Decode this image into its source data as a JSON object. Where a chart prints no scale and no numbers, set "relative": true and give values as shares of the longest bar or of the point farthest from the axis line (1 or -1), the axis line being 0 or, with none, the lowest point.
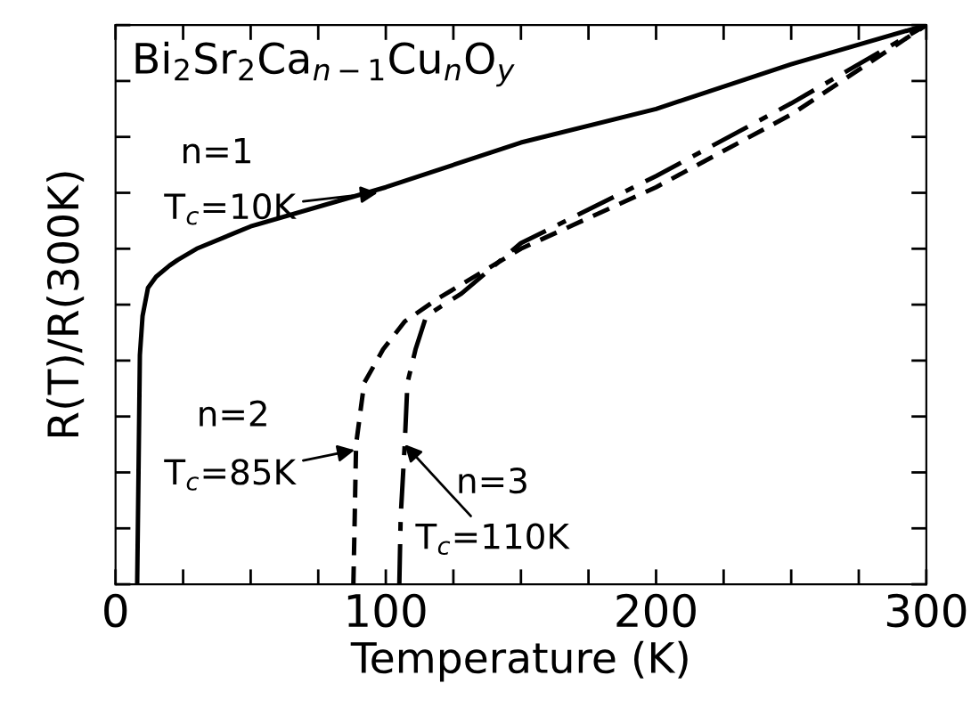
{
  "chart_data": {
    "type": "line",
    "relative": true,
    "xlabel": "Temperature (K)",
    "ylabel": "R(T)/R(300K)",
    "xlim": [
      0,
      300
    ],
    "xticks": [
      0,
      {
        "value": 25,
        "label": null
      },
      {
        "value": 50,
        "label": null
      },
      {
        "value": 75,
        "label": null
      },
      100,
      {
        "value": 125,
        "label": null
      },
      {
        "value": 150,
        "label": null
      },
      {
        "value": 175,
        "label": null
      },
      200,
      {
        "value": 225,
        "label": null
      },
      {
        "value": 250,
        "label": null
      },
      {
        "value": 275,
        "label": null
      },
      300
    ],
    "grid": false,
    "legend": false,
    "marker": "none",
    "series": [
      {
        "color": "#000000",
        "line_style": "solid",
        "x": [
          8,
          8.5,
          9,
          10,
          12,
          15,
          20,
          23,
          30,
          50,
          100,
          150,
          200,
          250,
          300
        ],
        "values": [
          0,
          0.2,
          0.41,
          0.48,
          0.53,
          0.55,
          0.57,
          0.58,
          0.6,
          0.64,
          0.71,
          0.79,
          0.85,
          0.93,
          1
        ]
      },
      {
        "color": "#000000",
        "line_style": "dashed",
        "x": [
          88,
          88.5,
          89,
          92,
          99,
          107,
          119,
          150,
          200,
          250,
          300
        ],
        "values": [
          0,
          0.12,
          0.25,
          0.36,
          0.42,
          0.47,
          0.51,
          0.6,
          0.71,
          0.84,
          1
        ]
      },
      {
        "color": "#000000",
        "line_style": "dashdot",
        "x": [
          105,
          105.5,
          107,
          108,
          111,
          115,
          128,
          150,
          200,
          250,
          300
        ],
        "values": [
          0,
          0.12,
          0.25,
          0.36,
          0.42,
          0.48,
          0.52,
          0.61,
          0.73,
          0.86,
          1
        ]
      }
    ],
    "annotations": [
      "Bi$_{2}$Sr$_{2}$Ca$_{n−1}$Cu$_{n}$O$_{y}$",
      "n=1",
      {
        "text": "T$_{c}$=10K",
        "x": 97,
        "y": 0.7
      },
      "n=2",
      {
        "text": "T$_{c}$=85K",
        "x": 88.5,
        "y": 0.24
      },
      "n=3",
      {
        "text": "T$_{c}$=110K",
        "x": 107,
        "y": 0.25
      }
    ]
  }
}
